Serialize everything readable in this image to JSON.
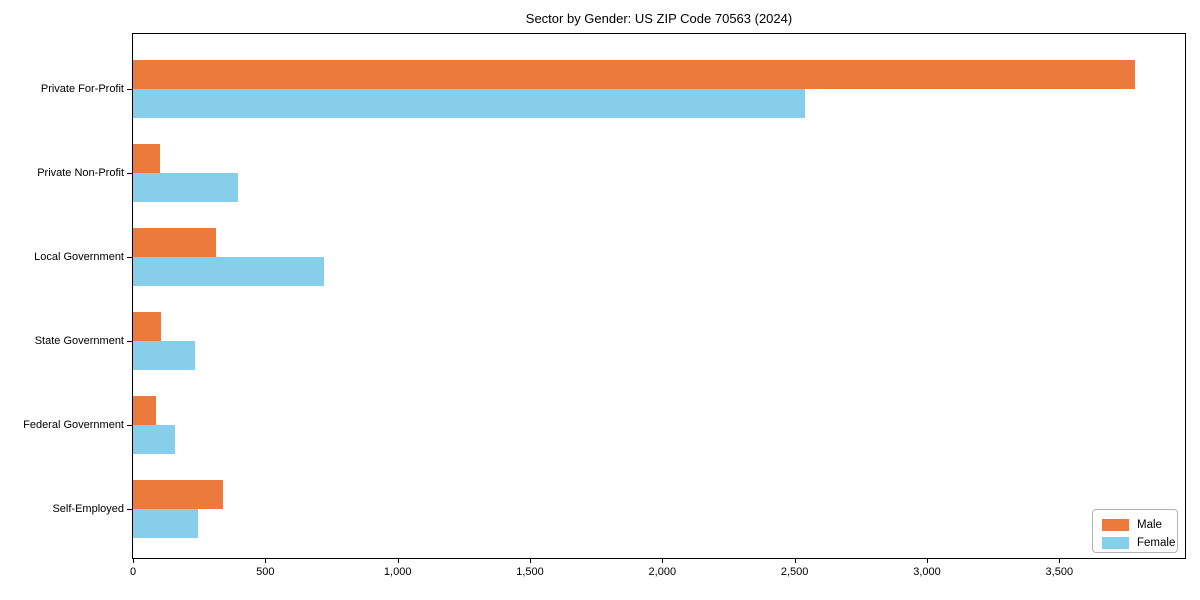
{
  "chart_data": {
    "type": "bar",
    "orientation": "horizontal",
    "title": "Sector by Gender: US ZIP Code 70563 (2024)",
    "categories": [
      "Private For-Profit",
      "Private Non-Profit",
      "Local Government",
      "State Government",
      "Federal Government",
      "Self-Employed"
    ],
    "series": [
      {
        "name": "Male",
        "color": "#ec7a3c",
        "values": [
          3785,
          100,
          315,
          105,
          85,
          340
        ]
      },
      {
        "name": "Female",
        "color": "#87ceeb",
        "values": [
          2540,
          395,
          720,
          235,
          160,
          245
        ]
      }
    ],
    "xlim": [
      0,
      3975
    ],
    "xticks": [
      0,
      500,
      1000,
      1500,
      2000,
      2500,
      3000,
      3500
    ],
    "xtick_labels": [
      "0",
      "500",
      "1,000",
      "1,500",
      "2,000",
      "2,500",
      "3,000",
      "3,500"
    ],
    "ylabel": "",
    "xlabel": "",
    "grid": false,
    "legend_position": "lower right",
    "spine_color": "#000000",
    "background_color": "#ffffff"
  }
}
